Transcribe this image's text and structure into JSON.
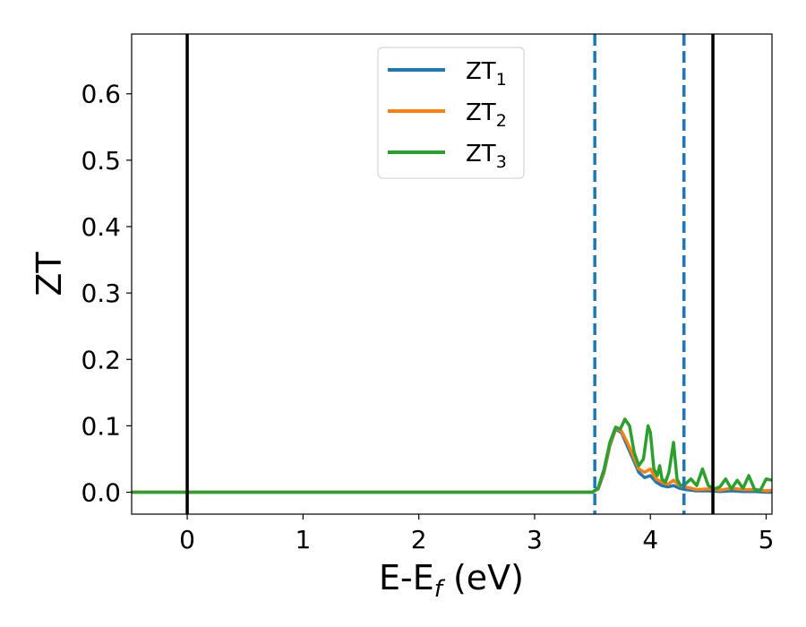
{
  "chart_data": {
    "type": "line",
    "title": "",
    "xlabel": {
      "main": "E-E",
      "sub": "f",
      "tail": " (eV)"
    },
    "ylabel": "ZT",
    "xlim": [
      -0.48,
      5.05
    ],
    "ylim": [
      -0.033,
      0.69
    ],
    "xticks": [
      0,
      1,
      2,
      3,
      4,
      5
    ],
    "xtick_labels": [
      "0",
      "1",
      "2",
      "3",
      "4",
      "5"
    ],
    "yticks": [
      0.0,
      0.1,
      0.2,
      0.3,
      0.4,
      0.5,
      0.6
    ],
    "ytick_labels": [
      "0.0",
      "0.1",
      "0.2",
      "0.3",
      "0.4",
      "0.5",
      "0.6"
    ],
    "grid": false,
    "legend_position": "top-center",
    "vertical_lines": [
      {
        "x": 0.0,
        "style": "solid",
        "color": "#000000"
      },
      {
        "x": 4.54,
        "style": "solid",
        "color": "#000000"
      },
      {
        "x": 3.52,
        "style": "dashed",
        "color": "#1f77b4"
      },
      {
        "x": 4.29,
        "style": "dashed",
        "color": "#1f77b4"
      }
    ],
    "series": [
      {
        "name": "ZT",
        "subscript": "1",
        "color": "#1f77b4",
        "x": [
          -0.48,
          3.5,
          3.55,
          3.6,
          3.65,
          3.7,
          3.75,
          3.8,
          3.85,
          3.9,
          3.95,
          4.0,
          4.05,
          4.1,
          4.15,
          4.2,
          4.25,
          4.3,
          4.35,
          4.4,
          4.5,
          4.6,
          4.7,
          4.8,
          4.9,
          5.0,
          5.05
        ],
        "y": [
          0.0,
          0.0,
          0.005,
          0.03,
          0.07,
          0.095,
          0.09,
          0.07,
          0.05,
          0.03,
          0.022,
          0.025,
          0.015,
          0.01,
          0.008,
          0.01,
          0.006,
          0.004,
          0.003,
          0.002,
          0.002,
          0.001,
          0.002,
          0.001,
          0.001,
          0.0,
          0.0
        ]
      },
      {
        "name": "ZT",
        "subscript": "2",
        "color": "#ff7f0e",
        "x": [
          -0.48,
          3.5,
          3.55,
          3.6,
          3.65,
          3.7,
          3.75,
          3.8,
          3.85,
          3.9,
          3.95,
          4.0,
          4.05,
          4.1,
          4.15,
          4.2,
          4.25,
          4.3,
          4.35,
          4.4,
          4.5,
          4.6,
          4.7,
          4.8,
          4.9,
          5.0,
          5.05
        ],
        "y": [
          0.0,
          0.0,
          0.006,
          0.032,
          0.072,
          0.097,
          0.092,
          0.075,
          0.055,
          0.035,
          0.03,
          0.035,
          0.02,
          0.015,
          0.012,
          0.018,
          0.01,
          0.008,
          0.006,
          0.004,
          0.005,
          0.003,
          0.006,
          0.004,
          0.004,
          0.002,
          0.003
        ]
      },
      {
        "name": "ZT",
        "subscript": "3",
        "color": "#2ca02c",
        "x": [
          -0.48,
          3.5,
          3.55,
          3.6,
          3.65,
          3.7,
          3.74,
          3.78,
          3.82,
          3.86,
          3.9,
          3.94,
          3.98,
          4.0,
          4.03,
          4.06,
          4.08,
          4.1,
          4.13,
          4.16,
          4.2,
          4.23,
          4.26,
          4.3,
          4.35,
          4.4,
          4.45,
          4.5,
          4.55,
          4.6,
          4.65,
          4.7,
          4.75,
          4.8,
          4.85,
          4.9,
          4.95,
          5.0,
          5.05
        ],
        "y": [
          0.0,
          0.0,
          0.007,
          0.035,
          0.075,
          0.098,
          0.095,
          0.11,
          0.1,
          0.06,
          0.04,
          0.05,
          0.1,
          0.09,
          0.035,
          0.025,
          0.04,
          0.02,
          0.015,
          0.03,
          0.075,
          0.02,
          0.01,
          0.012,
          0.02,
          0.01,
          0.035,
          0.01,
          0.005,
          0.008,
          0.02,
          0.005,
          0.018,
          0.006,
          0.025,
          0.004,
          0.003,
          0.02,
          0.018
        ]
      }
    ]
  }
}
